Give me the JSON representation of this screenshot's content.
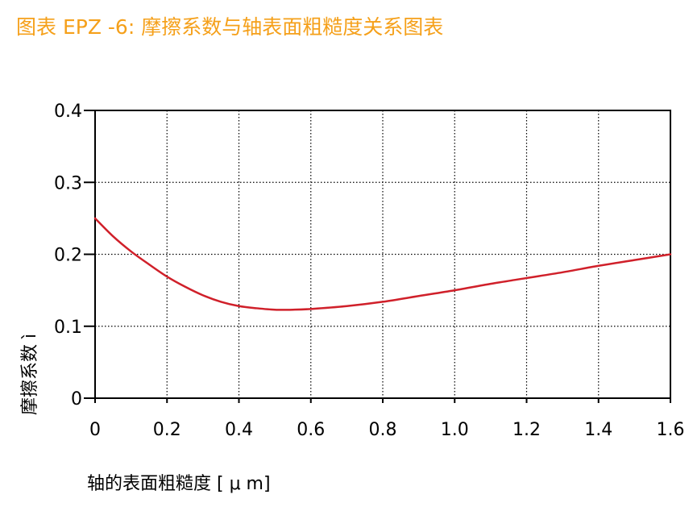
{
  "chart_data": {
    "type": "line",
    "title": "图表  EPZ -6: 摩擦系数与轴表面粗糙度关系图表",
    "xlabel": "轴的表面粗糙度 [ μ m]",
    "ylabel": "摩擦系数 ì",
    "xlim": [
      0,
      1.6
    ],
    "ylim": [
      0,
      0.4
    ],
    "xticks": [
      0,
      0.2,
      0.4,
      0.6,
      0.8,
      1.0,
      1.2,
      1.4,
      1.6
    ],
    "xtick_labels": [
      "0",
      "0.2",
      "0.4",
      "0.6",
      "0.8",
      "1.0",
      "1.2",
      "1.4",
      "1.6"
    ],
    "yticks": [
      0,
      0.1,
      0.2,
      0.3,
      0.4
    ],
    "ytick_labels": [
      "0",
      "0.1",
      "0.2",
      "0.3",
      "0.4"
    ],
    "grid": true,
    "series": [
      {
        "x": [
          0,
          0.05,
          0.1,
          0.15,
          0.2,
          0.25,
          0.3,
          0.35,
          0.4,
          0.45,
          0.5,
          0.55,
          0.6,
          0.7,
          0.8,
          0.9,
          1.0,
          1.1,
          1.2,
          1.3,
          1.4,
          1.5,
          1.6
        ],
        "y": [
          0.25,
          0.225,
          0.204,
          0.186,
          0.169,
          0.155,
          0.143,
          0.134,
          0.128,
          0.125,
          0.123,
          0.123,
          0.124,
          0.128,
          0.134,
          0.142,
          0.15,
          0.159,
          0.167,
          0.175,
          0.184,
          0.192,
          0.2
        ],
        "color": "#d0202a"
      }
    ],
    "title_color": "#f5a01a"
  }
}
